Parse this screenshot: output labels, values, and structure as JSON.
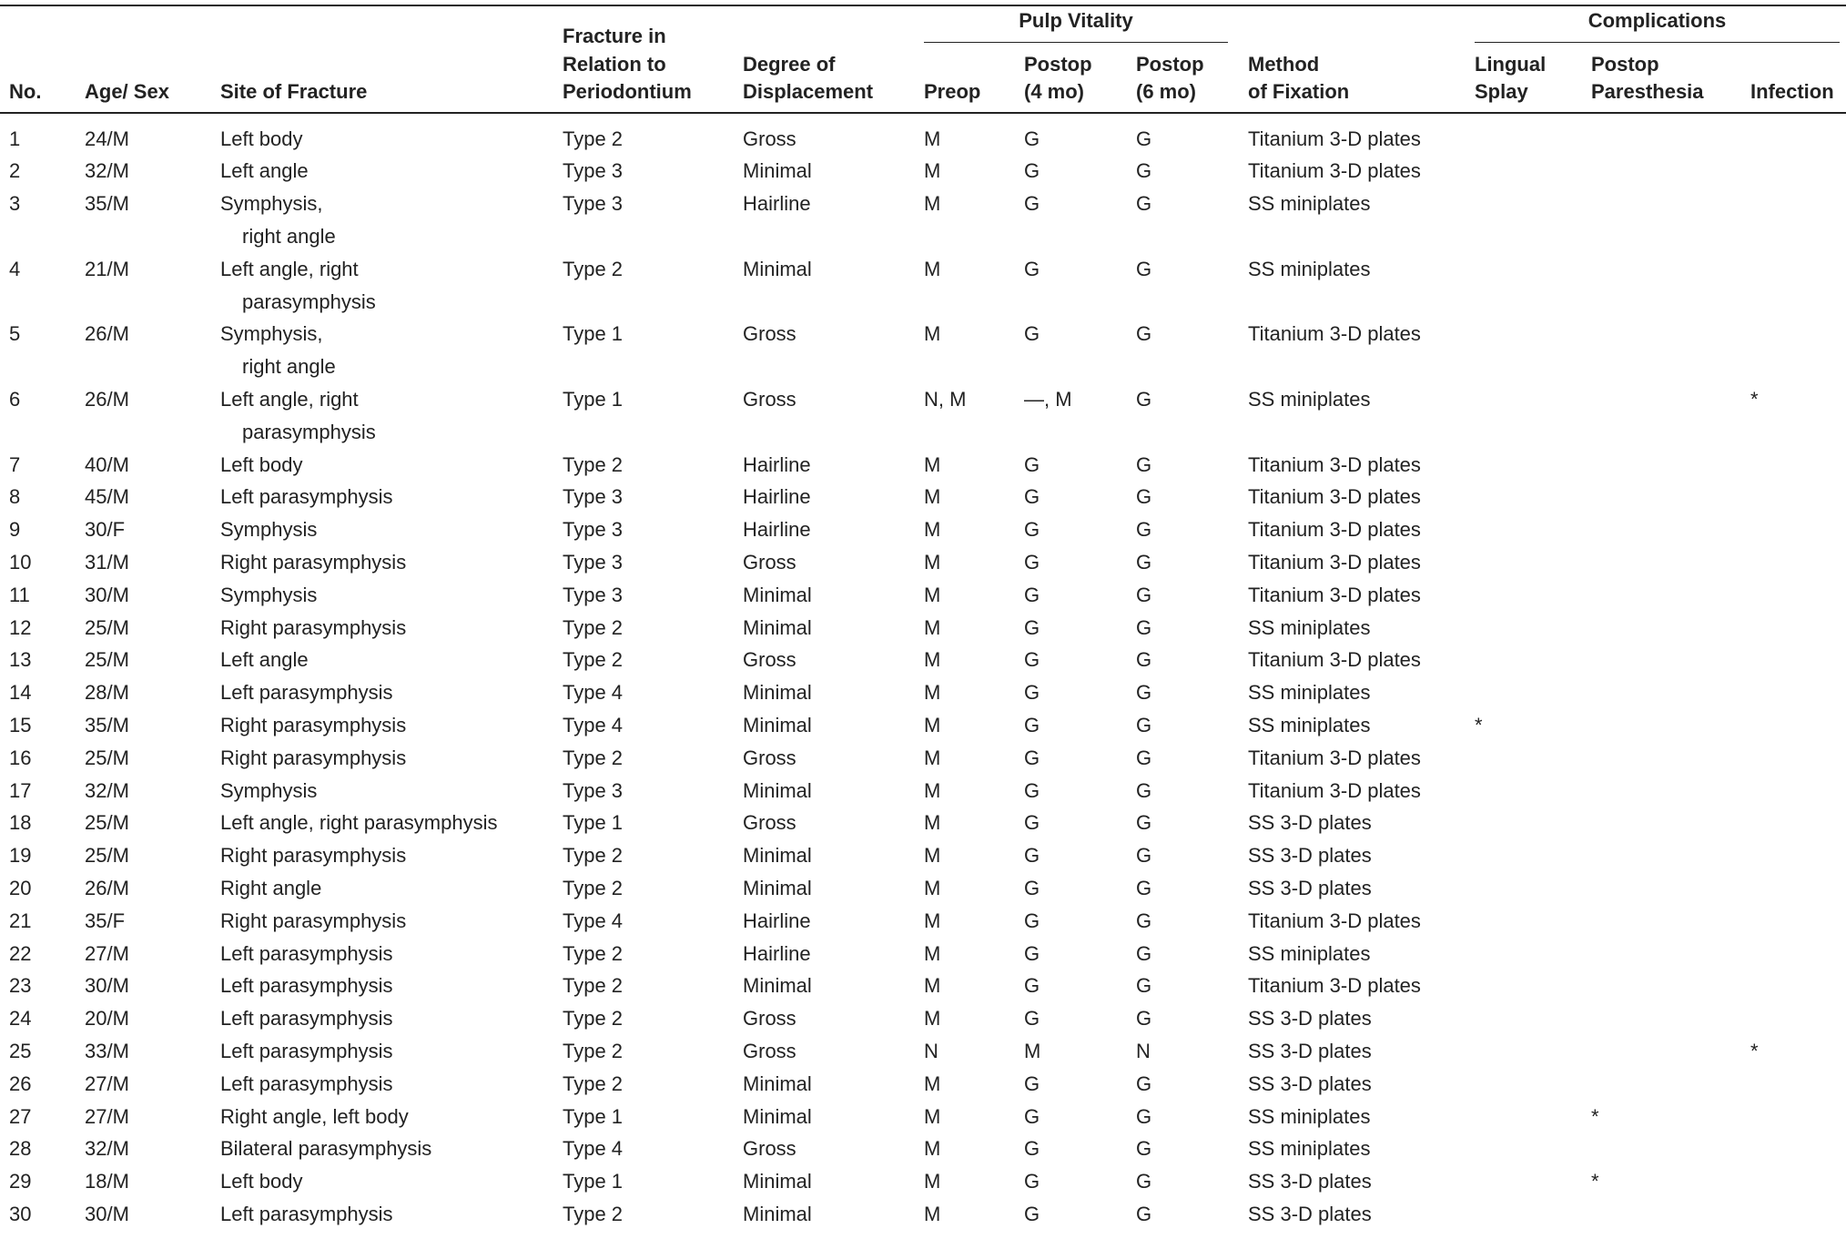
{
  "header": {
    "groups": [
      "Pulp Vitality",
      "Complications"
    ],
    "columns": [
      [
        "No."
      ],
      [
        "Age/ Sex"
      ],
      [
        "Site of Fracture"
      ],
      [
        "Fracture in",
        "Relation to",
        "Periodontium"
      ],
      [
        "Degree of",
        "Displacement"
      ],
      [
        "Preop"
      ],
      [
        "Postop",
        "(4 mo)"
      ],
      [
        "Postop",
        "(6 mo)"
      ],
      [
        "Method",
        "of Fixation"
      ],
      [
        "Lingual",
        "Splay"
      ],
      [
        "Postop",
        "Paresthesia"
      ],
      [
        "Infection"
      ]
    ]
  },
  "rows": [
    [
      "1",
      "24/M",
      "Left body",
      "Type 2",
      "Gross",
      "M",
      "G",
      "G",
      "Titanium 3-D plates",
      null,
      null,
      null
    ],
    [
      "2",
      "32/M",
      "Left angle",
      "Type 3",
      "Minimal",
      "M",
      "G",
      "G",
      "Titanium 3-D plates",
      null,
      null,
      null
    ],
    [
      "3",
      "35/M",
      [
        "Symphysis,",
        "right angle"
      ],
      "Type 3",
      "Hairline",
      "M",
      "G",
      "G",
      "SS miniplates",
      null,
      null,
      null
    ],
    [
      "4",
      "21/M",
      [
        "Left angle, right",
        "parasymphysis"
      ],
      "Type 2",
      "Minimal",
      "M",
      "G",
      "G",
      "SS miniplates",
      null,
      null,
      null
    ],
    [
      "5",
      "26/M",
      [
        "Symphysis,",
        "right angle"
      ],
      "Type 1",
      "Gross",
      "M",
      "G",
      "G",
      "Titanium 3-D plates",
      null,
      null,
      null
    ],
    [
      "6",
      "26/M",
      [
        "Left angle, right",
        "parasymphysis"
      ],
      "Type 1",
      "Gross",
      "N, M",
      "—, M",
      "G",
      "SS miniplates",
      null,
      null,
      "*"
    ],
    [
      "7",
      "40/M",
      "Left body",
      "Type 2",
      "Hairline",
      "M",
      "G",
      "G",
      "Titanium 3-D plates",
      null,
      null,
      null
    ],
    [
      "8",
      "45/M",
      "Left parasymphysis",
      "Type 3",
      "Hairline",
      "M",
      "G",
      "G",
      "Titanium 3-D plates",
      null,
      null,
      null
    ],
    [
      "9",
      "30/F",
      "Symphysis",
      "Type 3",
      "Hairline",
      "M",
      "G",
      "G",
      "Titanium 3-D plates",
      null,
      null,
      null
    ],
    [
      "10",
      "31/M",
      "Right parasymphysis",
      "Type 3",
      "Gross",
      "M",
      "G",
      "G",
      "Titanium 3-D plates",
      null,
      null,
      null
    ],
    [
      "11",
      "30/M",
      "Symphysis",
      "Type 3",
      "Minimal",
      "M",
      "G",
      "G",
      "Titanium 3-D plates",
      null,
      null,
      null
    ],
    [
      "12",
      "25/M",
      "Right parasymphysis",
      "Type 2",
      "Minimal",
      "M",
      "G",
      "G",
      "SS miniplates",
      null,
      null,
      null
    ],
    [
      "13",
      "25/M",
      "Left angle",
      "Type 2",
      "Gross",
      "M",
      "G",
      "G",
      "Titanium 3-D plates",
      null,
      null,
      null
    ],
    [
      "14",
      "28/M",
      "Left parasymphysis",
      "Type 4",
      "Minimal",
      "M",
      "G",
      "G",
      "SS miniplates",
      null,
      null,
      null
    ],
    [
      "15",
      "35/M",
      "Right parasymphysis",
      "Type 4",
      "Minimal",
      "M",
      "G",
      "G",
      "SS miniplates",
      "*",
      null,
      null
    ],
    [
      "16",
      "25/M",
      "Right parasymphysis",
      "Type 2",
      "Gross",
      "M",
      "G",
      "G",
      "Titanium 3-D plates",
      null,
      null,
      null
    ],
    [
      "17",
      "32/M",
      "Symphysis",
      "Type 3",
      "Minimal",
      "M",
      "G",
      "G",
      "Titanium 3-D plates",
      null,
      null,
      null
    ],
    [
      "18",
      "25/M",
      "Left angle, right parasymphysis",
      "Type 1",
      "Gross",
      "M",
      "G",
      "G",
      "SS 3-D plates",
      null,
      null,
      null
    ],
    [
      "19",
      "25/M",
      "Right parasymphysis",
      "Type 2",
      "Minimal",
      "M",
      "G",
      "G",
      "SS 3-D plates",
      null,
      null,
      null
    ],
    [
      "20",
      "26/M",
      "Right angle",
      "Type 2",
      "Minimal",
      "M",
      "G",
      "G",
      "SS 3-D plates",
      null,
      null,
      null
    ],
    [
      "21",
      "35/F",
      "Right parasymphysis",
      "Type 4",
      "Hairline",
      "M",
      "G",
      "G",
      "Titanium 3-D plates",
      null,
      null,
      null
    ],
    [
      "22",
      "27/M",
      "Left parasymphysis",
      "Type 2",
      "Hairline",
      "M",
      "G",
      "G",
      "SS miniplates",
      null,
      null,
      null
    ],
    [
      "23",
      "30/M",
      "Left parasymphysis",
      "Type 2",
      "Minimal",
      "M",
      "G",
      "G",
      "Titanium 3-D plates",
      null,
      null,
      null
    ],
    [
      "24",
      "20/M",
      "Left parasymphysis",
      "Type 2",
      "Gross",
      "M",
      "G",
      "G",
      "SS 3-D plates",
      null,
      null,
      null
    ],
    [
      "25",
      "33/M",
      "Left parasymphysis",
      "Type 2",
      "Gross",
      "N",
      "M",
      "N",
      "SS 3-D plates",
      null,
      null,
      "*"
    ],
    [
      "26",
      "27/M",
      "Left parasymphysis",
      "Type 2",
      "Minimal",
      "M",
      "G",
      "G",
      "SS 3-D plates",
      null,
      null,
      null
    ],
    [
      "27",
      "27/M",
      "Right angle, left body",
      "Type 1",
      "Minimal",
      "M",
      "G",
      "G",
      "SS miniplates",
      null,
      "*",
      null
    ],
    [
      "28",
      "32/M",
      "Bilateral parasymphysis",
      "Type 4",
      "Gross",
      "M",
      "G",
      "G",
      "SS miniplates",
      null,
      null,
      null
    ],
    [
      "29",
      "18/M",
      "Left body",
      "Type 1",
      "Minimal",
      "M",
      "G",
      "G",
      "SS 3-D plates",
      null,
      "*",
      null
    ],
    [
      "30",
      "30/M",
      "Left parasymphysis",
      "Type 2",
      "Minimal",
      "M",
      "G",
      "G",
      "SS 3-D plates",
      null,
      null,
      null
    ]
  ]
}
